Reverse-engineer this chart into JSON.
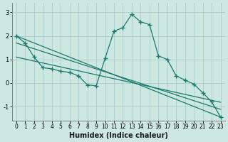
{
  "xlabel": "Humidex (Indice chaleur)",
  "bg_color": "#cce8e0",
  "grid_color": "#aacccc",
  "line_color": "#1a7a6e",
  "xlim": [
    -0.5,
    23.5
  ],
  "ylim": [
    -1.6,
    3.4
  ],
  "yticks": [
    -1,
    0,
    1,
    2,
    3
  ],
  "xticks": [
    0,
    1,
    2,
    3,
    4,
    5,
    6,
    7,
    8,
    9,
    10,
    11,
    12,
    13,
    14,
    15,
    16,
    17,
    18,
    19,
    20,
    21,
    22,
    23
  ],
  "curve_x": [
    0,
    1,
    2,
    3,
    4,
    5,
    6,
    7,
    8,
    9,
    10,
    11,
    12,
    13,
    14,
    15,
    16,
    17,
    18,
    19,
    20,
    21,
    22,
    23
  ],
  "curve_y": [
    2.0,
    1.7,
    1.1,
    0.65,
    0.6,
    0.5,
    0.45,
    0.3,
    -0.08,
    -0.12,
    1.05,
    2.2,
    2.35,
    2.92,
    2.6,
    2.48,
    1.15,
    1.0,
    0.3,
    0.12,
    -0.05,
    -0.42,
    -0.8,
    -1.45
  ],
  "line1_x": [
    0,
    23
  ],
  "line1_y": [
    2.0,
    -1.45
  ],
  "line2_x": [
    0,
    23
  ],
  "line2_y": [
    1.7,
    -1.12
  ],
  "line3_x": [
    0,
    23
  ],
  "line3_y": [
    1.1,
    -0.82
  ]
}
